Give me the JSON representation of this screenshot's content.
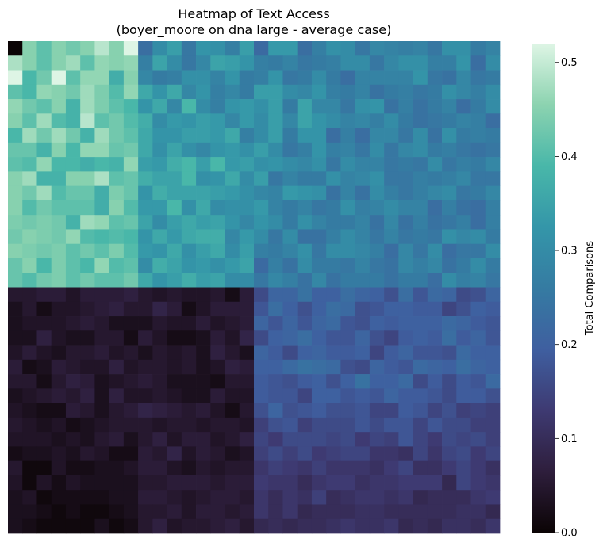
{
  "chart_data": {
    "type": "heatmap",
    "title_lines": [
      "Heatmap of Text Access",
      "(boyer_moore on dna large - average case)"
    ],
    "colorbar": {
      "label": "Total Comparisons",
      "min": 0.0,
      "max": 0.52,
      "ticks": [
        "0.0",
        "0.1",
        "0.2",
        "0.3",
        "0.4",
        "0.5"
      ],
      "tick_values": [
        0.0,
        0.1,
        0.2,
        0.3,
        0.4,
        0.5
      ],
      "colormap": "mako",
      "colormap_stops": [
        "#0b0405",
        "#2e1e3c",
        "#3e3a72",
        "#3f5fa0",
        "#357ba2",
        "#3496a9",
        "#49b7a9",
        "#8cd3b0",
        "#def5e5"
      ]
    },
    "grid": {
      "rows": 34,
      "cols": 34
    },
    "regions": [
      {
        "name": "top-left",
        "row_range": [
          0,
          17
        ],
        "col_range": [
          0,
          9
        ],
        "mean": 0.44
      },
      {
        "name": "top-middle",
        "row_range": [
          0,
          17
        ],
        "col_range": [
          9,
          17
        ],
        "mean": 0.36
      },
      {
        "name": "top-right",
        "row_range": [
          0,
          17
        ],
        "col_range": [
          17,
          34
        ],
        "mean": 0.28
      },
      {
        "name": "bottom-left",
        "row_range": [
          17,
          34
        ],
        "col_range": [
          0,
          17
        ],
        "mean": 0.04
      },
      {
        "name": "bottom-right",
        "row_range": [
          17,
          34
        ],
        "col_range": [
          17,
          34
        ],
        "mean": 0.19
      }
    ],
    "values": [
      [
        0.0,
        0.45,
        0.41,
        0.45,
        0.43,
        0.45,
        0.49,
        0.45,
        0.52,
        0.23,
        0.3,
        0.34,
        0.25,
        0.32,
        0.31,
        0.27,
        0.34,
        0.22,
        0.33,
        0.33,
        0.23,
        0.27,
        0.31,
        0.3,
        0.25,
        0.29,
        0.28,
        0.27,
        0.28,
        0.25,
        0.31,
        0.31,
        0.26,
        0.28
      ],
      [
        0.48,
        0.45,
        0.41,
        0.45,
        0.47,
        0.41,
        0.46,
        0.45,
        0.46,
        0.27,
        0.35,
        0.3,
        0.25,
        0.29,
        0.35,
        0.34,
        0.32,
        0.27,
        0.26,
        0.28,
        0.25,
        0.26,
        0.27,
        0.3,
        0.3,
        0.25,
        0.29,
        0.31,
        0.31,
        0.27,
        0.27,
        0.32,
        0.23,
        0.3
      ],
      [
        0.52,
        0.39,
        0.43,
        0.52,
        0.41,
        0.46,
        0.46,
        0.37,
        0.45,
        0.29,
        0.26,
        0.27,
        0.31,
        0.31,
        0.28,
        0.32,
        0.26,
        0.27,
        0.32,
        0.25,
        0.26,
        0.3,
        0.26,
        0.23,
        0.28,
        0.28,
        0.28,
        0.28,
        0.32,
        0.25,
        0.24,
        0.29,
        0.25,
        0.26
      ],
      [
        0.41,
        0.39,
        0.46,
        0.45,
        0.43,
        0.47,
        0.44,
        0.4,
        0.46,
        0.36,
        0.32,
        0.36,
        0.29,
        0.32,
        0.27,
        0.29,
        0.26,
        0.34,
        0.34,
        0.3,
        0.29,
        0.32,
        0.27,
        0.26,
        0.28,
        0.24,
        0.26,
        0.27,
        0.25,
        0.26,
        0.31,
        0.29,
        0.27,
        0.3
      ],
      [
        0.46,
        0.43,
        0.41,
        0.45,
        0.38,
        0.47,
        0.44,
        0.41,
        0.39,
        0.32,
        0.36,
        0.29,
        0.39,
        0.3,
        0.27,
        0.32,
        0.33,
        0.31,
        0.34,
        0.26,
        0.35,
        0.29,
        0.29,
        0.25,
        0.31,
        0.32,
        0.24,
        0.27,
        0.24,
        0.26,
        0.28,
        0.23,
        0.26,
        0.3
      ],
      [
        0.45,
        0.41,
        0.47,
        0.4,
        0.38,
        0.49,
        0.41,
        0.43,
        0.4,
        0.37,
        0.3,
        0.33,
        0.32,
        0.34,
        0.33,
        0.29,
        0.33,
        0.3,
        0.34,
        0.29,
        0.35,
        0.32,
        0.3,
        0.28,
        0.29,
        0.27,
        0.3,
        0.26,
        0.24,
        0.25,
        0.26,
        0.28,
        0.27,
        0.23
      ],
      [
        0.39,
        0.47,
        0.43,
        0.47,
        0.43,
        0.38,
        0.47,
        0.43,
        0.41,
        0.36,
        0.32,
        0.32,
        0.34,
        0.34,
        0.33,
        0.36,
        0.27,
        0.3,
        0.34,
        0.26,
        0.32,
        0.32,
        0.23,
        0.27,
        0.23,
        0.29,
        0.29,
        0.25,
        0.3,
        0.24,
        0.31,
        0.26,
        0.27,
        0.26
      ],
      [
        0.42,
        0.42,
        0.38,
        0.45,
        0.39,
        0.46,
        0.46,
        0.42,
        0.43,
        0.36,
        0.31,
        0.35,
        0.31,
        0.29,
        0.32,
        0.33,
        0.31,
        0.34,
        0.3,
        0.25,
        0.27,
        0.32,
        0.27,
        0.28,
        0.25,
        0.3,
        0.25,
        0.29,
        0.3,
        0.26,
        0.27,
        0.25,
        0.24,
        0.25
      ],
      [
        0.41,
        0.4,
        0.46,
        0.39,
        0.39,
        0.37,
        0.39,
        0.38,
        0.46,
        0.34,
        0.33,
        0.37,
        0.39,
        0.34,
        0.39,
        0.33,
        0.34,
        0.31,
        0.32,
        0.3,
        0.29,
        0.31,
        0.25,
        0.3,
        0.28,
        0.28,
        0.25,
        0.26,
        0.25,
        0.3,
        0.25,
        0.27,
        0.26,
        0.29
      ],
      [
        0.45,
        0.47,
        0.38,
        0.38,
        0.45,
        0.45,
        0.48,
        0.41,
        0.42,
        0.37,
        0.35,
        0.35,
        0.39,
        0.31,
        0.32,
        0.36,
        0.3,
        0.34,
        0.25,
        0.28,
        0.26,
        0.26,
        0.31,
        0.28,
        0.29,
        0.31,
        0.25,
        0.25,
        0.27,
        0.26,
        0.27,
        0.29,
        0.25,
        0.25
      ],
      [
        0.45,
        0.43,
        0.47,
        0.4,
        0.42,
        0.42,
        0.37,
        0.44,
        0.42,
        0.32,
        0.37,
        0.35,
        0.35,
        0.35,
        0.34,
        0.33,
        0.31,
        0.29,
        0.28,
        0.33,
        0.32,
        0.31,
        0.24,
        0.28,
        0.24,
        0.3,
        0.27,
        0.25,
        0.27,
        0.29,
        0.3,
        0.25,
        0.26,
        0.29
      ],
      [
        0.45,
        0.4,
        0.43,
        0.41,
        0.41,
        0.41,
        0.37,
        0.45,
        0.4,
        0.33,
        0.33,
        0.39,
        0.31,
        0.36,
        0.3,
        0.31,
        0.31,
        0.33,
        0.28,
        0.26,
        0.28,
        0.25,
        0.26,
        0.31,
        0.27,
        0.28,
        0.3,
        0.28,
        0.28,
        0.23,
        0.27,
        0.24,
        0.23,
        0.27
      ],
      [
        0.44,
        0.43,
        0.44,
        0.43,
        0.38,
        0.47,
        0.46,
        0.41,
        0.42,
        0.35,
        0.3,
        0.34,
        0.36,
        0.34,
        0.35,
        0.32,
        0.29,
        0.32,
        0.3,
        0.26,
        0.31,
        0.28,
        0.26,
        0.26,
        0.28,
        0.24,
        0.29,
        0.24,
        0.27,
        0.24,
        0.25,
        0.27,
        0.23,
        0.27
      ],
      [
        0.43,
        0.45,
        0.44,
        0.43,
        0.46,
        0.4,
        0.39,
        0.4,
        0.39,
        0.32,
        0.36,
        0.33,
        0.36,
        0.37,
        0.37,
        0.29,
        0.33,
        0.3,
        0.25,
        0.3,
        0.24,
        0.24,
        0.27,
        0.3,
        0.28,
        0.25,
        0.28,
        0.25,
        0.26,
        0.25,
        0.31,
        0.29,
        0.3,
        0.26
      ],
      [
        0.45,
        0.44,
        0.43,
        0.44,
        0.41,
        0.43,
        0.41,
        0.44,
        0.4,
        0.33,
        0.32,
        0.36,
        0.31,
        0.34,
        0.36,
        0.3,
        0.34,
        0.27,
        0.26,
        0.28,
        0.31,
        0.25,
        0.3,
        0.3,
        0.29,
        0.27,
        0.23,
        0.29,
        0.25,
        0.3,
        0.23,
        0.25,
        0.25,
        0.3
      ],
      [
        0.42,
        0.45,
        0.39,
        0.44,
        0.41,
        0.39,
        0.46,
        0.4,
        0.41,
        0.3,
        0.37,
        0.35,
        0.32,
        0.33,
        0.31,
        0.33,
        0.35,
        0.22,
        0.27,
        0.24,
        0.3,
        0.26,
        0.26,
        0.25,
        0.28,
        0.25,
        0.24,
        0.29,
        0.27,
        0.29,
        0.24,
        0.26,
        0.3,
        0.26
      ],
      [
        0.42,
        0.4,
        0.43,
        0.44,
        0.41,
        0.43,
        0.41,
        0.41,
        0.43,
        0.36,
        0.32,
        0.34,
        0.37,
        0.34,
        0.35,
        0.3,
        0.3,
        0.25,
        0.29,
        0.27,
        0.24,
        0.29,
        0.24,
        0.26,
        0.26,
        0.26,
        0.24,
        0.26,
        0.26,
        0.23,
        0.3,
        0.27,
        0.28,
        0.25
      ],
      [
        0.05,
        0.05,
        0.06,
        0.06,
        0.04,
        0.06,
        0.06,
        0.06,
        0.07,
        0.05,
        0.04,
        0.05,
        0.04,
        0.04,
        0.05,
        0.02,
        0.06,
        0.16,
        0.21,
        0.21,
        0.24,
        0.2,
        0.2,
        0.23,
        0.21,
        0.2,
        0.17,
        0.23,
        0.18,
        0.22,
        0.21,
        0.16,
        0.17,
        0.21
      ],
      [
        0.03,
        0.05,
        0.02,
        0.04,
        0.04,
        0.05,
        0.06,
        0.07,
        0.05,
        0.05,
        0.08,
        0.06,
        0.02,
        0.04,
        0.06,
        0.06,
        0.06,
        0.18,
        0.23,
        0.2,
        0.17,
        0.2,
        0.23,
        0.22,
        0.17,
        0.18,
        0.2,
        0.2,
        0.19,
        0.19,
        0.15,
        0.17,
        0.2,
        0.19
      ],
      [
        0.03,
        0.04,
        0.04,
        0.04,
        0.05,
        0.06,
        0.05,
        0.03,
        0.03,
        0.03,
        0.05,
        0.04,
        0.04,
        0.06,
        0.04,
        0.05,
        0.06,
        0.21,
        0.18,
        0.21,
        0.18,
        0.21,
        0.22,
        0.18,
        0.17,
        0.2,
        0.19,
        0.2,
        0.2,
        0.2,
        0.22,
        0.21,
        0.19,
        0.18
      ],
      [
        0.03,
        0.03,
        0.07,
        0.04,
        0.03,
        0.03,
        0.05,
        0.05,
        0.02,
        0.06,
        0.04,
        0.02,
        0.02,
        0.03,
        0.06,
        0.04,
        0.08,
        0.16,
        0.2,
        0.21,
        0.23,
        0.2,
        0.18,
        0.18,
        0.21,
        0.17,
        0.15,
        0.19,
        0.2,
        0.19,
        0.23,
        0.19,
        0.21,
        0.18
      ],
      [
        0.04,
        0.06,
        0.04,
        0.03,
        0.05,
        0.05,
        0.06,
        0.04,
        0.05,
        0.03,
        0.05,
        0.04,
        0.05,
        0.03,
        0.07,
        0.05,
        0.03,
        0.21,
        0.19,
        0.16,
        0.2,
        0.21,
        0.19,
        0.19,
        0.2,
        0.15,
        0.19,
        0.21,
        0.18,
        0.18,
        0.17,
        0.22,
        0.2,
        0.2
      ],
      [
        0.06,
        0.02,
        0.03,
        0.06,
        0.05,
        0.04,
        0.04,
        0.07,
        0.04,
        0.05,
        0.05,
        0.04,
        0.05,
        0.03,
        0.04,
        0.07,
        0.06,
        0.2,
        0.2,
        0.22,
        0.24,
        0.23,
        0.22,
        0.17,
        0.16,
        0.21,
        0.19,
        0.18,
        0.22,
        0.21,
        0.2,
        0.23,
        0.21,
        0.2
      ],
      [
        0.05,
        0.05,
        0.02,
        0.05,
        0.07,
        0.06,
        0.03,
        0.04,
        0.05,
        0.06,
        0.05,
        0.03,
        0.03,
        0.03,
        0.02,
        0.05,
        0.05,
        0.19,
        0.18,
        0.17,
        0.19,
        0.2,
        0.17,
        0.2,
        0.24,
        0.2,
        0.2,
        0.22,
        0.16,
        0.19,
        0.16,
        0.19,
        0.18,
        0.22
      ],
      [
        0.03,
        0.04,
        0.05,
        0.06,
        0.05,
        0.07,
        0.03,
        0.07,
        0.04,
        0.04,
        0.05,
        0.04,
        0.03,
        0.03,
        0.06,
        0.04,
        0.04,
        0.19,
        0.18,
        0.18,
        0.15,
        0.2,
        0.2,
        0.18,
        0.19,
        0.18,
        0.21,
        0.19,
        0.19,
        0.18,
        0.16,
        0.19,
        0.19,
        0.17
      ],
      [
        0.04,
        0.03,
        0.02,
        0.02,
        0.06,
        0.05,
        0.03,
        0.05,
        0.06,
        0.08,
        0.07,
        0.06,
        0.05,
        0.06,
        0.04,
        0.02,
        0.05,
        0.17,
        0.21,
        0.17,
        0.18,
        0.19,
        0.17,
        0.17,
        0.18,
        0.15,
        0.15,
        0.19,
        0.18,
        0.15,
        0.17,
        0.14,
        0.15,
        0.14
      ],
      [
        0.05,
        0.04,
        0.03,
        0.04,
        0.02,
        0.03,
        0.04,
        0.05,
        0.05,
        0.05,
        0.04,
        0.05,
        0.05,
        0.04,
        0.05,
        0.05,
        0.04,
        0.14,
        0.17,
        0.18,
        0.14,
        0.16,
        0.16,
        0.16,
        0.18,
        0.16,
        0.18,
        0.18,
        0.15,
        0.18,
        0.16,
        0.16,
        0.14,
        0.14
      ],
      [
        0.04,
        0.04,
        0.04,
        0.03,
        0.04,
        0.03,
        0.05,
        0.06,
        0.03,
        0.05,
        0.07,
        0.04,
        0.06,
        0.06,
        0.04,
        0.05,
        0.07,
        0.15,
        0.13,
        0.16,
        0.16,
        0.16,
        0.15,
        0.16,
        0.13,
        0.15,
        0.14,
        0.18,
        0.15,
        0.13,
        0.16,
        0.15,
        0.16,
        0.14
      ],
      [
        0.02,
        0.03,
        0.03,
        0.04,
        0.03,
        0.05,
        0.04,
        0.02,
        0.02,
        0.06,
        0.05,
        0.08,
        0.04,
        0.06,
        0.05,
        0.03,
        0.04,
        0.14,
        0.16,
        0.14,
        0.16,
        0.13,
        0.14,
        0.15,
        0.15,
        0.12,
        0.12,
        0.11,
        0.15,
        0.12,
        0.15,
        0.16,
        0.13,
        0.15
      ],
      [
        0.05,
        0.01,
        0.01,
        0.04,
        0.02,
        0.02,
        0.03,
        0.03,
        0.04,
        0.06,
        0.06,
        0.04,
        0.03,
        0.05,
        0.04,
        0.05,
        0.05,
        0.12,
        0.14,
        0.13,
        0.12,
        0.14,
        0.12,
        0.12,
        0.12,
        0.11,
        0.13,
        0.15,
        0.11,
        0.11,
        0.13,
        0.15,
        0.13,
        0.11
      ],
      [
        0.04,
        0.01,
        0.04,
        0.02,
        0.04,
        0.03,
        0.03,
        0.03,
        0.03,
        0.05,
        0.05,
        0.06,
        0.06,
        0.06,
        0.05,
        0.06,
        0.06,
        0.13,
        0.12,
        0.12,
        0.1,
        0.12,
        0.13,
        0.13,
        0.11,
        0.12,
        0.12,
        0.13,
        0.13,
        0.13,
        0.09,
        0.15,
        0.13,
        0.12
      ],
      [
        0.03,
        0.04,
        0.01,
        0.02,
        0.02,
        0.02,
        0.02,
        0.03,
        0.03,
        0.06,
        0.06,
        0.05,
        0.04,
        0.05,
        0.06,
        0.06,
        0.05,
        0.12,
        0.1,
        0.12,
        0.11,
        0.14,
        0.1,
        0.11,
        0.12,
        0.12,
        0.11,
        0.12,
        0.09,
        0.1,
        0.1,
        0.1,
        0.12,
        0.13
      ],
      [
        0.03,
        0.03,
        0.02,
        0.01,
        0.02,
        0.01,
        0.01,
        0.02,
        0.03,
        0.05,
        0.05,
        0.06,
        0.04,
        0.06,
        0.06,
        0.05,
        0.06,
        0.12,
        0.1,
        0.12,
        0.09,
        0.1,
        0.1,
        0.1,
        0.11,
        0.11,
        0.1,
        0.1,
        0.1,
        0.1,
        0.1,
        0.11,
        0.11,
        0.09
      ],
      [
        0.03,
        0.02,
        0.01,
        0.01,
        0.01,
        0.01,
        0.03,
        0.01,
        0.02,
        0.05,
        0.07,
        0.04,
        0.05,
        0.05,
        0.06,
        0.07,
        0.05,
        0.09,
        0.1,
        0.09,
        0.1,
        0.1,
        0.11,
        0.12,
        0.11,
        0.11,
        0.12,
        0.09,
        0.1,
        0.09,
        0.11,
        0.11,
        0.1,
        0.12
      ]
    ]
  }
}
